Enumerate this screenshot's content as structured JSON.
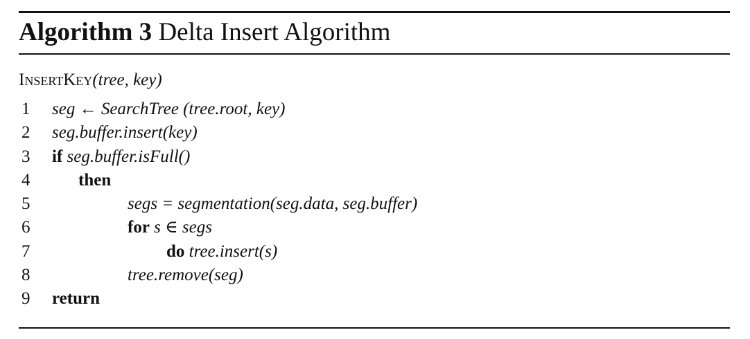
{
  "algorithm": {
    "label": "Algorithm 3",
    "title": "Delta Insert Algorithm"
  },
  "signature": {
    "name": "InsertKey",
    "args": "(tree, key)"
  },
  "lines": [
    {
      "num": "1",
      "text": "seg ← SearchTree (tree.root, key)"
    },
    {
      "num": "2",
      "text": "seg.buffer.insert(key)"
    },
    {
      "num": "3",
      "keyword": "if",
      "text": "seg.buffer.isFull()"
    },
    {
      "num": "4",
      "keyword": "then"
    },
    {
      "num": "5",
      "text": "segs = segmentation(seg.data, seg.buffer)"
    },
    {
      "num": "6",
      "keyword": "for",
      "text": "s ∈ segs"
    },
    {
      "num": "7",
      "keyword": "do",
      "text": "tree.insert(s)"
    },
    {
      "num": "8",
      "text": "tree.remove(seg)"
    },
    {
      "num": "9",
      "keyword": "return"
    }
  ]
}
